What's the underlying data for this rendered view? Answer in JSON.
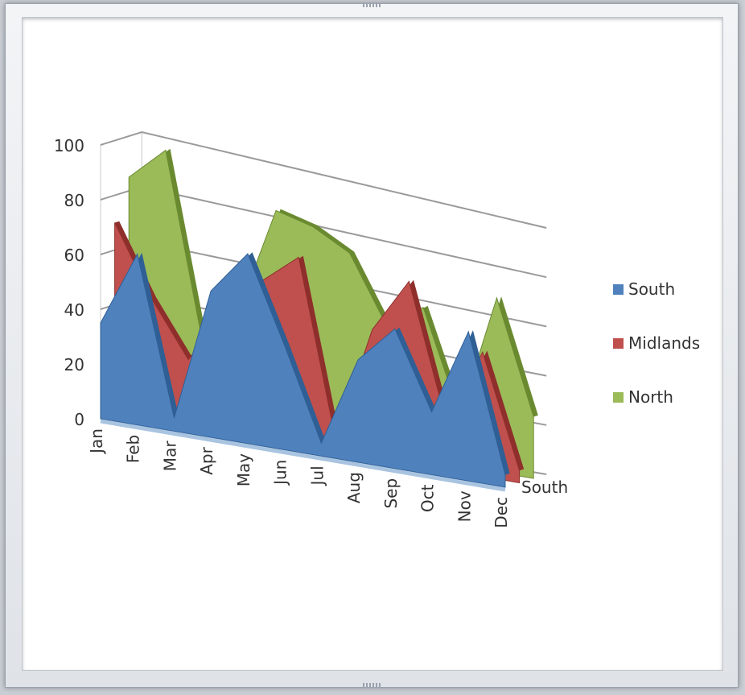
{
  "chart_data": {
    "type": "area",
    "subtype": "3d-area",
    "categories": [
      "Jan",
      "Feb",
      "Mar",
      "Apr",
      "May",
      "Jun",
      "Jul",
      "Aug",
      "Sep",
      "Oct",
      "Nov",
      "Dec"
    ],
    "ylim": [
      0,
      100
    ],
    "yticks": [
      "0",
      "20",
      "40",
      "60",
      "80",
      "100"
    ],
    "grid": true,
    "legend_position": "right",
    "depth_label": "South",
    "series": [
      {
        "name": "South",
        "color": "#4f81bd",
        "values": [
          35,
          63,
          5,
          55,
          72,
          40,
          5,
          40,
          55,
          25,
          60,
          5
        ]
      },
      {
        "name": "Midlands",
        "color": "#c0504d",
        "values": [
          70,
          45,
          25,
          45,
          60,
          72,
          5,
          50,
          72,
          20,
          50,
          5
        ]
      },
      {
        "name": "North",
        "color": "#9bbb59",
        "values": [
          85,
          98,
          30,
          45,
          85,
          82,
          75,
          50,
          60,
          20,
          70,
          25
        ]
      }
    ]
  }
}
